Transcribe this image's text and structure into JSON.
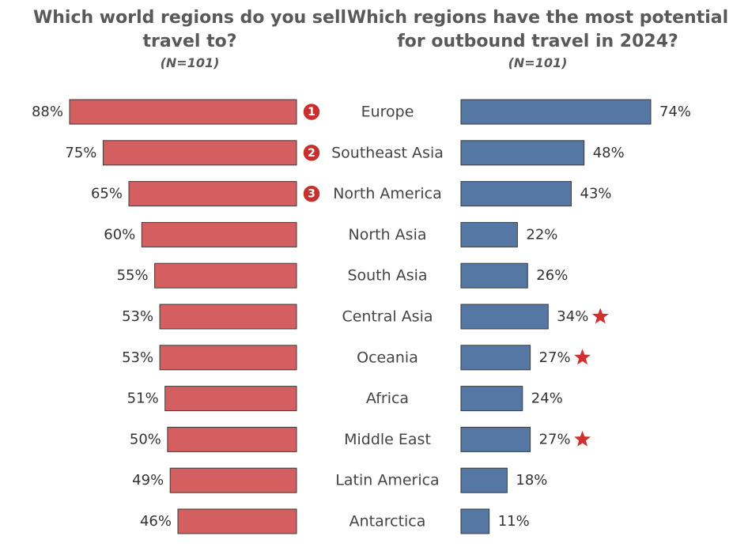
{
  "titles": {
    "left": "Which world regions do you sell travel to?",
    "left_sub": "(N=101)",
    "right": "Which regions have the most potential for outbound travel in 2024?",
    "right_sub": "(N=101)"
  },
  "colors": {
    "left_bar": "#d45f60",
    "right_bar": "#5577a3",
    "bar_stroke": "#3a3a3a",
    "badge": "#c8302e",
    "star": "#d22f2f"
  },
  "chart_data": [
    {
      "type": "bar",
      "orientation": "horizontal",
      "title": "Which world regions do you sell travel to?",
      "subtitle": "(N=101)",
      "categories": [
        "Europe",
        "Southeast Asia",
        "North America",
        "North Asia",
        "South Asia",
        "Central Asia",
        "Oceania",
        "Africa",
        "Middle East",
        "Latin America",
        "Antarctica"
      ],
      "values": [
        88,
        75,
        65,
        60,
        55,
        53,
        53,
        51,
        50,
        49,
        46
      ],
      "labels": [
        "88%",
        "75%",
        "65%",
        "60%",
        "55%",
        "53%",
        "53%",
        "51%",
        "50%",
        "49%",
        "46%"
      ],
      "ranks": [
        "1",
        "2",
        "3",
        "",
        "",
        "",
        "",
        "",
        "",
        "",
        ""
      ],
      "unit": "%",
      "xlim": [
        0,
        100
      ]
    },
    {
      "type": "bar",
      "orientation": "horizontal",
      "title": "Which regions have the most potential for outbound travel in 2024?",
      "subtitle": "(N=101)",
      "categories": [
        "Europe",
        "Southeast Asia",
        "North America",
        "North Asia",
        "South Asia",
        "Central Asia",
        "Oceania",
        "Africa",
        "Middle East",
        "Latin America",
        "Antarctica"
      ],
      "values": [
        74,
        48,
        43,
        22,
        26,
        34,
        27,
        24,
        27,
        18,
        11
      ],
      "labels": [
        "74%",
        "48%",
        "43%",
        "22%",
        "26%",
        "34%",
        "27%",
        "24%",
        "27%",
        "18%",
        "11%"
      ],
      "starred": [
        false,
        false,
        false,
        false,
        false,
        true,
        true,
        false,
        true,
        false,
        false
      ],
      "unit": "%",
      "xlim": [
        0,
        100
      ]
    }
  ]
}
